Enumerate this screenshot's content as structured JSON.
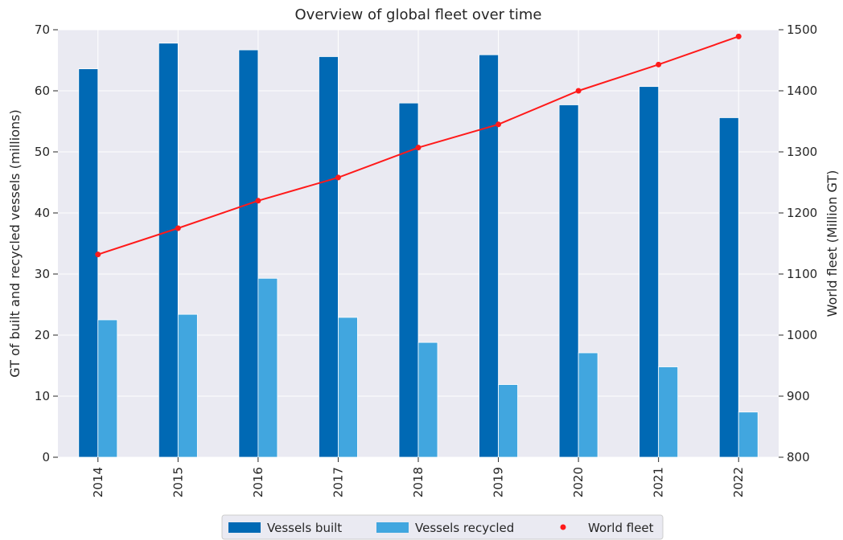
{
  "chart_data": {
    "type": "bar",
    "title": "Overview of global fleet over time",
    "categories": [
      "2014",
      "2015",
      "2016",
      "2017",
      "2018",
      "2019",
      "2020",
      "2021",
      "2022"
    ],
    "series": [
      {
        "name": "Vessels built",
        "type": "bar",
        "axis": "left",
        "color": "#0069b4",
        "values": [
          63.6,
          67.8,
          66.7,
          65.6,
          58.0,
          65.9,
          57.7,
          60.7,
          55.6
        ]
      },
      {
        "name": "Vessels recycled",
        "type": "bar",
        "axis": "left",
        "color": "#41a6df",
        "values": [
          22.5,
          23.4,
          29.3,
          22.9,
          18.8,
          11.9,
          17.1,
          14.8,
          7.4
        ]
      },
      {
        "name": "World fleet",
        "type": "line",
        "axis": "right",
        "color": "#ff1a1a",
        "values": [
          1132,
          1175,
          1220,
          1258,
          1307,
          1345,
          1400,
          1443,
          1489
        ]
      }
    ],
    "ylabel_left": "GT of built and recycled vessels (millions)",
    "ylabel_right": "World fleet (Million GT)",
    "xlabel": "",
    "ylim_left": [
      0,
      70
    ],
    "ylim_right": [
      800,
      1500
    ],
    "yticks_left": [
      "0",
      "10",
      "20",
      "30",
      "40",
      "50",
      "60",
      "70"
    ],
    "yticks_right": [
      "800",
      "900",
      "1000",
      "1100",
      "1200",
      "1300",
      "1400",
      "1500"
    ],
    "grid": true,
    "legend_position": "bottom-center"
  },
  "colors": {
    "plot_background": "#eaeaf2",
    "grid": "#ffffff",
    "text": "#262626"
  }
}
